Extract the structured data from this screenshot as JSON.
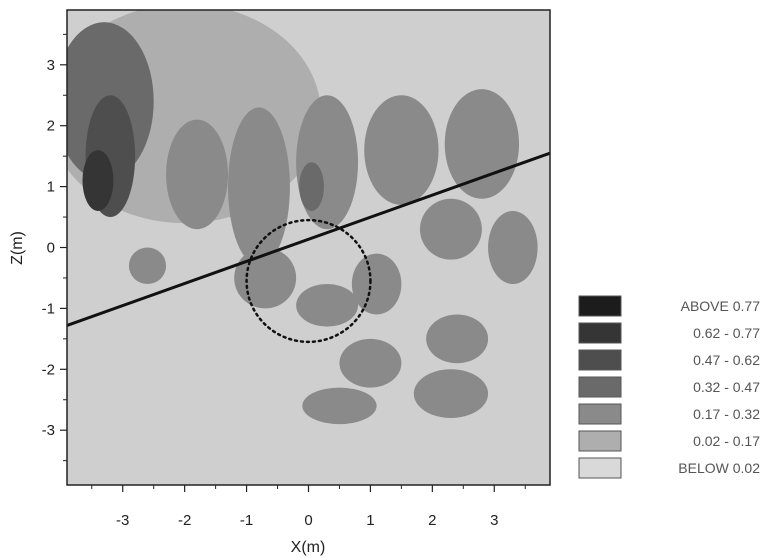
{
  "chart_data": {
    "type": "heatmap",
    "title": "",
    "xlabel": "X(m)",
    "ylabel": "Z(m)",
    "xlim": [
      -3.9,
      3.9
    ],
    "ylim": [
      -3.9,
      3.9
    ],
    "x_ticks": [
      -3,
      -2,
      -1,
      0,
      1,
      2,
      3
    ],
    "y_ticks": [
      3,
      2,
      1,
      0,
      -1,
      -2,
      -3
    ],
    "grid": false,
    "legend_position": "right",
    "legend": [
      {
        "label": "ABOVE  0.77",
        "color": "#1c1c1c"
      },
      {
        "label": "0.62 - 0.77",
        "color": "#353535"
      },
      {
        "label": "0.47 - 0.62",
        "color": "#4e4e4e"
      },
      {
        "label": "0.32 - 0.47",
        "color": "#6a6a6a"
      },
      {
        "label": "0.17 - 0.32",
        "color": "#8a8a8a"
      },
      {
        "label": "0.02 - 0.17",
        "color": "#aeaeae"
      },
      {
        "label": "BELOW  0.02",
        "color": "#d9d9d9"
      }
    ],
    "reference_line": {
      "x": [
        -3.9,
        3.9
      ],
      "z": [
        -1.28,
        1.55
      ]
    },
    "reference_circle": {
      "center": [
        0,
        -0.55
      ],
      "radius": 1.0
    },
    "contour_regions": [
      {
        "level": "0.02 - 0.17",
        "cx": -2.0,
        "cz": 2.2,
        "rx": 2.2,
        "rz": 1.8
      },
      {
        "level": "0.32 - 0.47",
        "cx": -3.3,
        "cz": 2.4,
        "rx": 0.8,
        "rz": 1.3
      },
      {
        "level": "0.47 - 0.62",
        "cx": -3.2,
        "cz": 1.5,
        "rx": 0.4,
        "rz": 1.0
      },
      {
        "level": "0.62 - 0.77",
        "cx": -3.4,
        "cz": 1.1,
        "rx": 0.25,
        "rz": 0.5
      },
      {
        "level": "0.17 - 0.32",
        "cx": -1.8,
        "cz": 1.2,
        "rx": 0.5,
        "rz": 0.9
      },
      {
        "level": "0.17 - 0.32",
        "cx": -0.8,
        "cz": 1.0,
        "rx": 0.5,
        "rz": 1.3
      },
      {
        "level": "0.17 - 0.32",
        "cx": 0.3,
        "cz": 1.4,
        "rx": 0.5,
        "rz": 1.1
      },
      {
        "level": "0.32 - 0.47",
        "cx": 0.05,
        "cz": 1.0,
        "rx": 0.2,
        "rz": 0.4
      },
      {
        "level": "0.17 - 0.32",
        "cx": 1.5,
        "cz": 1.6,
        "rx": 0.6,
        "rz": 0.9
      },
      {
        "level": "0.17 - 0.32",
        "cx": 2.8,
        "cz": 1.7,
        "rx": 0.6,
        "rz": 0.9
      },
      {
        "level": "0.17 - 0.32",
        "cx": 2.3,
        "cz": 0.3,
        "rx": 0.5,
        "rz": 0.5
      },
      {
        "level": "0.17 - 0.32",
        "cx": 3.3,
        "cz": 0.0,
        "rx": 0.4,
        "rz": 0.6
      },
      {
        "level": "0.17 - 0.32",
        "cx": -2.6,
        "cz": -0.3,
        "rx": 0.3,
        "rz": 0.3
      },
      {
        "level": "0.17 - 0.32",
        "cx": -0.7,
        "cz": -0.5,
        "rx": 0.5,
        "rz": 0.5
      },
      {
        "level": "0.17 - 0.32",
        "cx": 0.3,
        "cz": -0.95,
        "rx": 0.5,
        "rz": 0.35
      },
      {
        "level": "0.17 - 0.32",
        "cx": 1.1,
        "cz": -0.6,
        "rx": 0.4,
        "rz": 0.5
      },
      {
        "level": "0.17 - 0.32",
        "cx": 1.0,
        "cz": -1.9,
        "rx": 0.5,
        "rz": 0.4
      },
      {
        "level": "0.17 - 0.32",
        "cx": 2.4,
        "cz": -1.5,
        "rx": 0.5,
        "rz": 0.4
      },
      {
        "level": "0.17 - 0.32",
        "cx": 2.3,
        "cz": -2.4,
        "rx": 0.6,
        "rz": 0.4
      },
      {
        "level": "0.17 - 0.32",
        "cx": 0.5,
        "cz": -2.6,
        "rx": 0.6,
        "rz": 0.3
      }
    ]
  }
}
